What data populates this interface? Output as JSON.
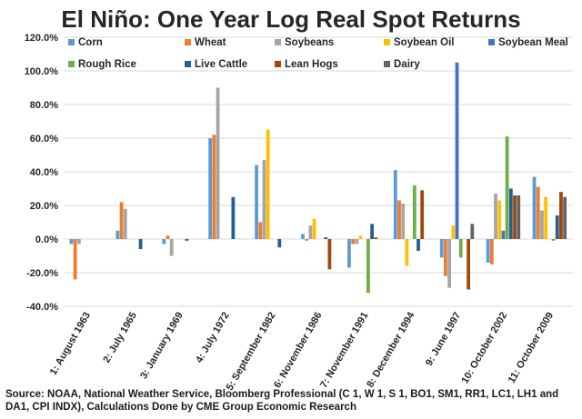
{
  "chart_data": {
    "type": "bar",
    "title": "El Niño: One Year Log Real Spot Returns",
    "source": "Source: NOAA, National Weather Service, Bloomberg Professional (C 1, W 1, S 1, BO1, SM1, RR1, LC1, LH1 and DA1, CPI INDX), Calculations Done by CME Group Economic Research",
    "ylim": [
      -40,
      120
    ],
    "yticks": [
      -40,
      -20,
      0,
      20,
      40,
      60,
      80,
      100,
      120
    ],
    "ytick_labels": [
      "-40.0%",
      "-20.0%",
      "0.0%",
      "20.0%",
      "40.0%",
      "60.0%",
      "80.0%",
      "100.0%",
      "120.0%"
    ],
    "grid": true,
    "legend_position": "top",
    "categories": [
      "1: August 1963",
      "2: July 1965",
      "3: January 1969",
      "4: July 1972",
      "5: September 1982",
      "6: November 1986",
      "7: November 1991",
      "8: December 1994",
      "9: June 1997",
      "10: October 2002",
      "11: October 2009"
    ],
    "series": [
      {
        "name": "Corn",
        "color": "#5b9bd5",
        "values": [
          -3,
          5,
          -3,
          60,
          44,
          3,
          -17,
          41,
          -11,
          -14,
          37
        ]
      },
      {
        "name": "Wheat",
        "color": "#ed7d31",
        "values": [
          -24,
          22,
          2,
          62,
          10,
          -1,
          -3,
          23,
          -22,
          -15,
          31
        ]
      },
      {
        "name": "Soybeans",
        "color": "#a5a5a5",
        "values": [
          -3,
          18,
          -10,
          90,
          47,
          8,
          -3,
          21,
          -29,
          27,
          17
        ]
      },
      {
        "name": "Soybean Oil",
        "color": "#ffc000",
        "values": [
          0,
          0,
          0,
          0,
          65,
          12,
          2,
          -16,
          8,
          23,
          25
        ]
      },
      {
        "name": "Soybean Meal",
        "color": "#4472c4",
        "values": [
          0,
          0,
          0,
          0,
          0,
          0,
          0,
          0,
          105,
          5,
          0
        ]
      },
      {
        "name": "Rough Rice",
        "color": "#70ad47",
        "values": [
          0,
          0,
          0,
          0,
          0,
          0,
          -32,
          32,
          -11,
          61,
          -1
        ]
      },
      {
        "name": "Live Cattle",
        "color": "#255e91",
        "values": [
          0,
          -6,
          -1,
          25,
          -5,
          1,
          9,
          -7,
          0,
          30,
          14
        ]
      },
      {
        "name": "Lean Hogs",
        "color": "#9e480e",
        "values": [
          0,
          0,
          0,
          0,
          0,
          -18,
          1,
          29,
          -30,
          26,
          28
        ]
      },
      {
        "name": "Dairy",
        "color": "#636363",
        "values": [
          0,
          0,
          0,
          0,
          0,
          0,
          0,
          0,
          9,
          26,
          25
        ]
      }
    ]
  }
}
